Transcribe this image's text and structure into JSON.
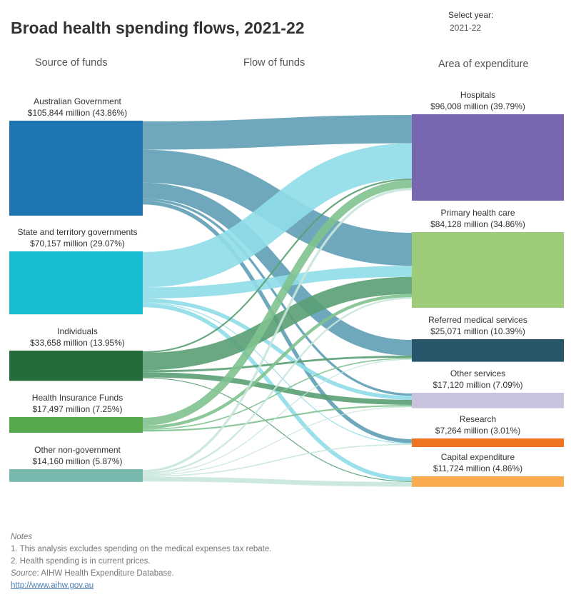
{
  "title": "Broad health spending flows, 2021-22",
  "year_select": {
    "label": "Select year:",
    "value": "2021-22"
  },
  "columns": {
    "source": "Source of funds",
    "flow": "Flow of funds",
    "area": "Area of expenditure"
  },
  "colors": {
    "Australian Government": "#1f74b2",
    "State and territory governments": "#18bdd1",
    "Individuals": "#236b3a",
    "Health Insurance Funds": "#56a84d",
    "Other non-government": "#77b9ae",
    "Hospitals": "#7866b1",
    "Primary health care": "#9dcb77",
    "Referred medical services": "#27566a",
    "Other services": "#c8c2de",
    "Research": "#ef7421",
    "Capital expenditure": "#f9ab4f"
  },
  "link_colors": {
    "Australian Government": "#5f9fb5",
    "State and territory governments": "#8fdde8",
    "Individuals": "#5a9e74",
    "Health Insurance Funds": "#7fc28f",
    "Other non-government": "#c7e6dc"
  },
  "chart_data": {
    "type": "sankey",
    "units": "$ million",
    "sources": [
      {
        "name": "Australian Government",
        "label": "$105,844 million (43.86%)",
        "value": 105844,
        "percent": 43.86
      },
      {
        "name": "State and territory governments",
        "label": "$70,157 million (29.07%)",
        "value": 70157,
        "percent": 29.07
      },
      {
        "name": "Individuals",
        "label": "$33,658 million (13.95%)",
        "value": 33658,
        "percent": 13.95
      },
      {
        "name": "Health Insurance Funds",
        "label": "$17,497 million (7.25%)",
        "value": 17497,
        "percent": 7.25
      },
      {
        "name": "Other non-government",
        "label": "$14,160 million (5.87%)",
        "value": 14160,
        "percent": 5.87
      }
    ],
    "targets": [
      {
        "name": "Hospitals",
        "label": "$96,008 million (39.79%)",
        "value": 96008,
        "percent": 39.79
      },
      {
        "name": "Primary health care",
        "label": "$84,128 million (34.86%)",
        "value": 84128,
        "percent": 34.86
      },
      {
        "name": "Referred medical services",
        "label": "$25,071 million (10.39%)",
        "value": 25071,
        "percent": 10.39
      },
      {
        "name": "Other services",
        "label": "$17,120 million (7.09%)",
        "value": 17120,
        "percent": 7.09
      },
      {
        "name": "Research",
        "label": "$7,264 million (3.01%)",
        "value": 7264,
        "percent": 3.01
      },
      {
        "name": "Capital expenditure",
        "label": "$11,724 million (4.86%)",
        "value": 11724,
        "percent": 4.86
      }
    ],
    "links": [
      {
        "source": "Australian Government",
        "target": "Hospitals",
        "value": 36000
      },
      {
        "source": "Australian Government",
        "target": "Primary health care",
        "value": 42000
      },
      {
        "source": "Australian Government",
        "target": "Referred medical services",
        "value": 20000
      },
      {
        "source": "Australian Government",
        "target": "Other services",
        "value": 3000
      },
      {
        "source": "Australian Government",
        "target": "Research",
        "value": 4844
      },
      {
        "source": "State and territory governments",
        "target": "Hospitals",
        "value": 45000
      },
      {
        "source": "State and territory governments",
        "target": "Primary health care",
        "value": 14000
      },
      {
        "source": "State and territory governments",
        "target": "Other services",
        "value": 5000
      },
      {
        "source": "State and territory governments",
        "target": "Research",
        "value": 1000
      },
      {
        "source": "State and territory governments",
        "target": "Capital expenditure",
        "value": 5157
      },
      {
        "source": "Individuals",
        "target": "Hospitals",
        "value": 2000
      },
      {
        "source": "Individuals",
        "target": "Primary health care",
        "value": 22000
      },
      {
        "source": "Individuals",
        "target": "Referred medical services",
        "value": 2600
      },
      {
        "source": "Individuals",
        "target": "Other services",
        "value": 6500
      },
      {
        "source": "Individuals",
        "target": "Capital expenditure",
        "value": 558
      },
      {
        "source": "Health Insurance Funds",
        "target": "Hospitals",
        "value": 10000
      },
      {
        "source": "Health Insurance Funds",
        "target": "Primary health care",
        "value": 4000
      },
      {
        "source": "Health Insurance Funds",
        "target": "Referred medical services",
        "value": 1500
      },
      {
        "source": "Health Insurance Funds",
        "target": "Other services",
        "value": 1997
      },
      {
        "source": "Other non-government",
        "target": "Hospitals",
        "value": 3008
      },
      {
        "source": "Other non-government",
        "target": "Primary health care",
        "value": 2128
      },
      {
        "source": "Other non-government",
        "target": "Referred medical services",
        "value": 971
      },
      {
        "source": "Other non-government",
        "target": "Other services",
        "value": 623
      },
      {
        "source": "Other non-government",
        "target": "Research",
        "value": 1420
      },
      {
        "source": "Other non-government",
        "target": "Capital expenditure",
        "value": 6010
      }
    ]
  },
  "notes": {
    "title": "Notes",
    "items": [
      "1.    This analysis excludes spending on the medical expenses tax rebate.",
      "2.    Health spending is in current prices."
    ],
    "source_label": "Source",
    "source_text": ": AIHW Health Expenditure Database.",
    "link": "http://www.aihw.gov.au"
  }
}
